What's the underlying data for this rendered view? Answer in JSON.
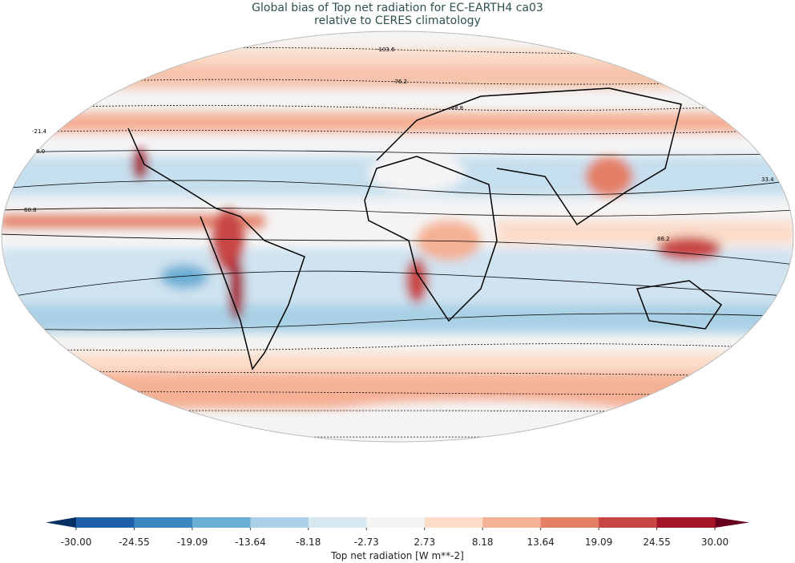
{
  "title": {
    "line1": "Global bias of Top net radiation for EC-EARTH4 ca03",
    "line2": "relative to CERES climatology"
  },
  "map": {
    "projection": "Robinson",
    "contour_labels": [
      "-103.6",
      "-76.2",
      "-48.8",
      "-21.4",
      "6.0",
      "33.4",
      "60.8",
      "88.2"
    ]
  },
  "colorbar": {
    "label": "Top net radiation [W m**-2]",
    "ticks": [
      "-30.00",
      "-24.55",
      "-19.09",
      "-13.64",
      "-8.18",
      "-2.73",
      "2.73",
      "8.18",
      "13.64",
      "19.09",
      "24.55",
      "30.00"
    ],
    "colors": [
      "#1f5fa8",
      "#3a87c0",
      "#6aaed4",
      "#a9d0e5",
      "#d6e7f0",
      "#f4f4f4",
      "#fbdcc9",
      "#f5b195",
      "#e47f66",
      "#c84744",
      "#a51429"
    ],
    "under_color": "#053061",
    "over_color": "#67001f",
    "range": [
      -30,
      30
    ]
  }
}
